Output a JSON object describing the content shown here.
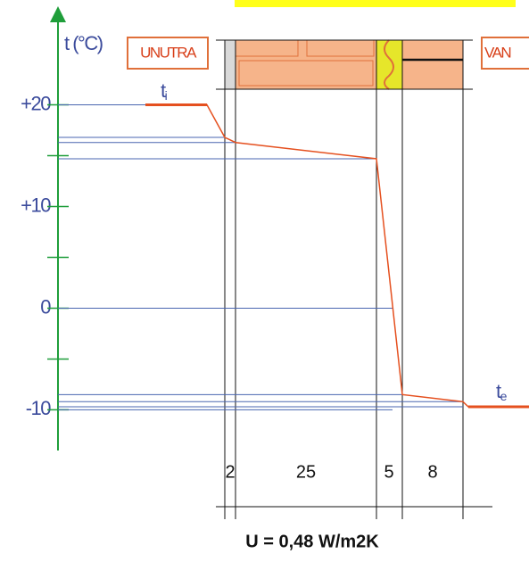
{
  "chart_data": {
    "type": "line",
    "y_label": "t (°C)",
    "ylim": [
      -14,
      29
    ],
    "yticks": [
      {
        "value": 20,
        "label": "+20"
      },
      {
        "value": 10,
        "label": "+10"
      },
      0,
      -10
    ],
    "yminor": [
      15,
      5,
      -5
    ],
    "inside_label": "UNUTRA",
    "outside_label": "VAN",
    "inside_temp": {
      "symbol": "t",
      "sub": "i"
    },
    "outside_temp": {
      "symbol": "t",
      "sub": "e"
    },
    "series": [
      {
        "name": "t",
        "color": "#e5501f",
        "values": [
          20,
          20,
          16.8,
          16.3,
          14.7,
          -8.5,
          -9.2,
          -9.7,
          -9.7
        ]
      }
    ],
    "guide_color": "#4a66b0",
    "layers": [
      2,
      25,
      5,
      8
    ],
    "formula": "U = 0,48 W/m2K"
  }
}
